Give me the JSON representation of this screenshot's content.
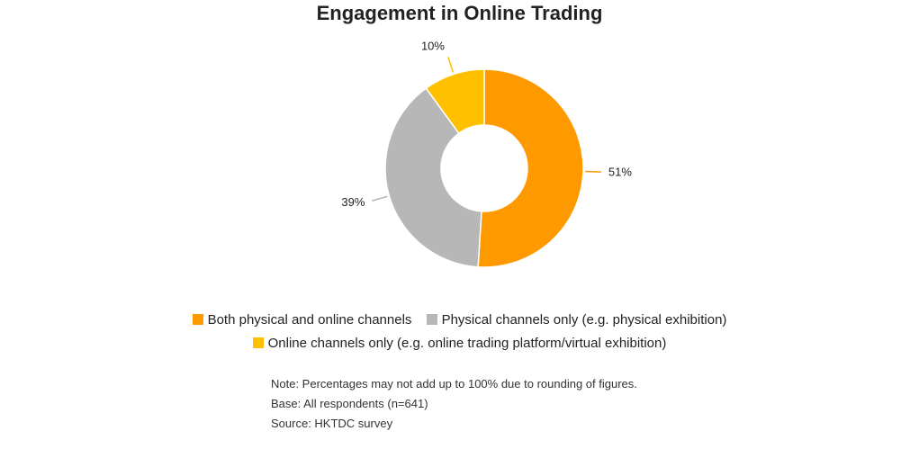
{
  "chart_data": {
    "type": "pie",
    "title": "Engagement in Online Trading",
    "series": [
      {
        "name": "Both physical and online channels",
        "value": 51,
        "label": "51%",
        "color": "#FF9900"
      },
      {
        "name": "Physical channels only (e.g. physical exhibition)",
        "value": 39,
        "label": "39%",
        "color": "#B7B7B7"
      },
      {
        "name": "Online channels only (e.g. online trading platform/virtual exhibition)",
        "value": 10,
        "label": "10%",
        "color": "#FFC000"
      }
    ],
    "legend_position": "bottom",
    "donut": true
  },
  "notes": {
    "note": "Note: Percentages may not add up to 100% due to rounding of figures.",
    "base": "Base: All respondents (n=641)",
    "source": "Source: HKTDC survey"
  }
}
